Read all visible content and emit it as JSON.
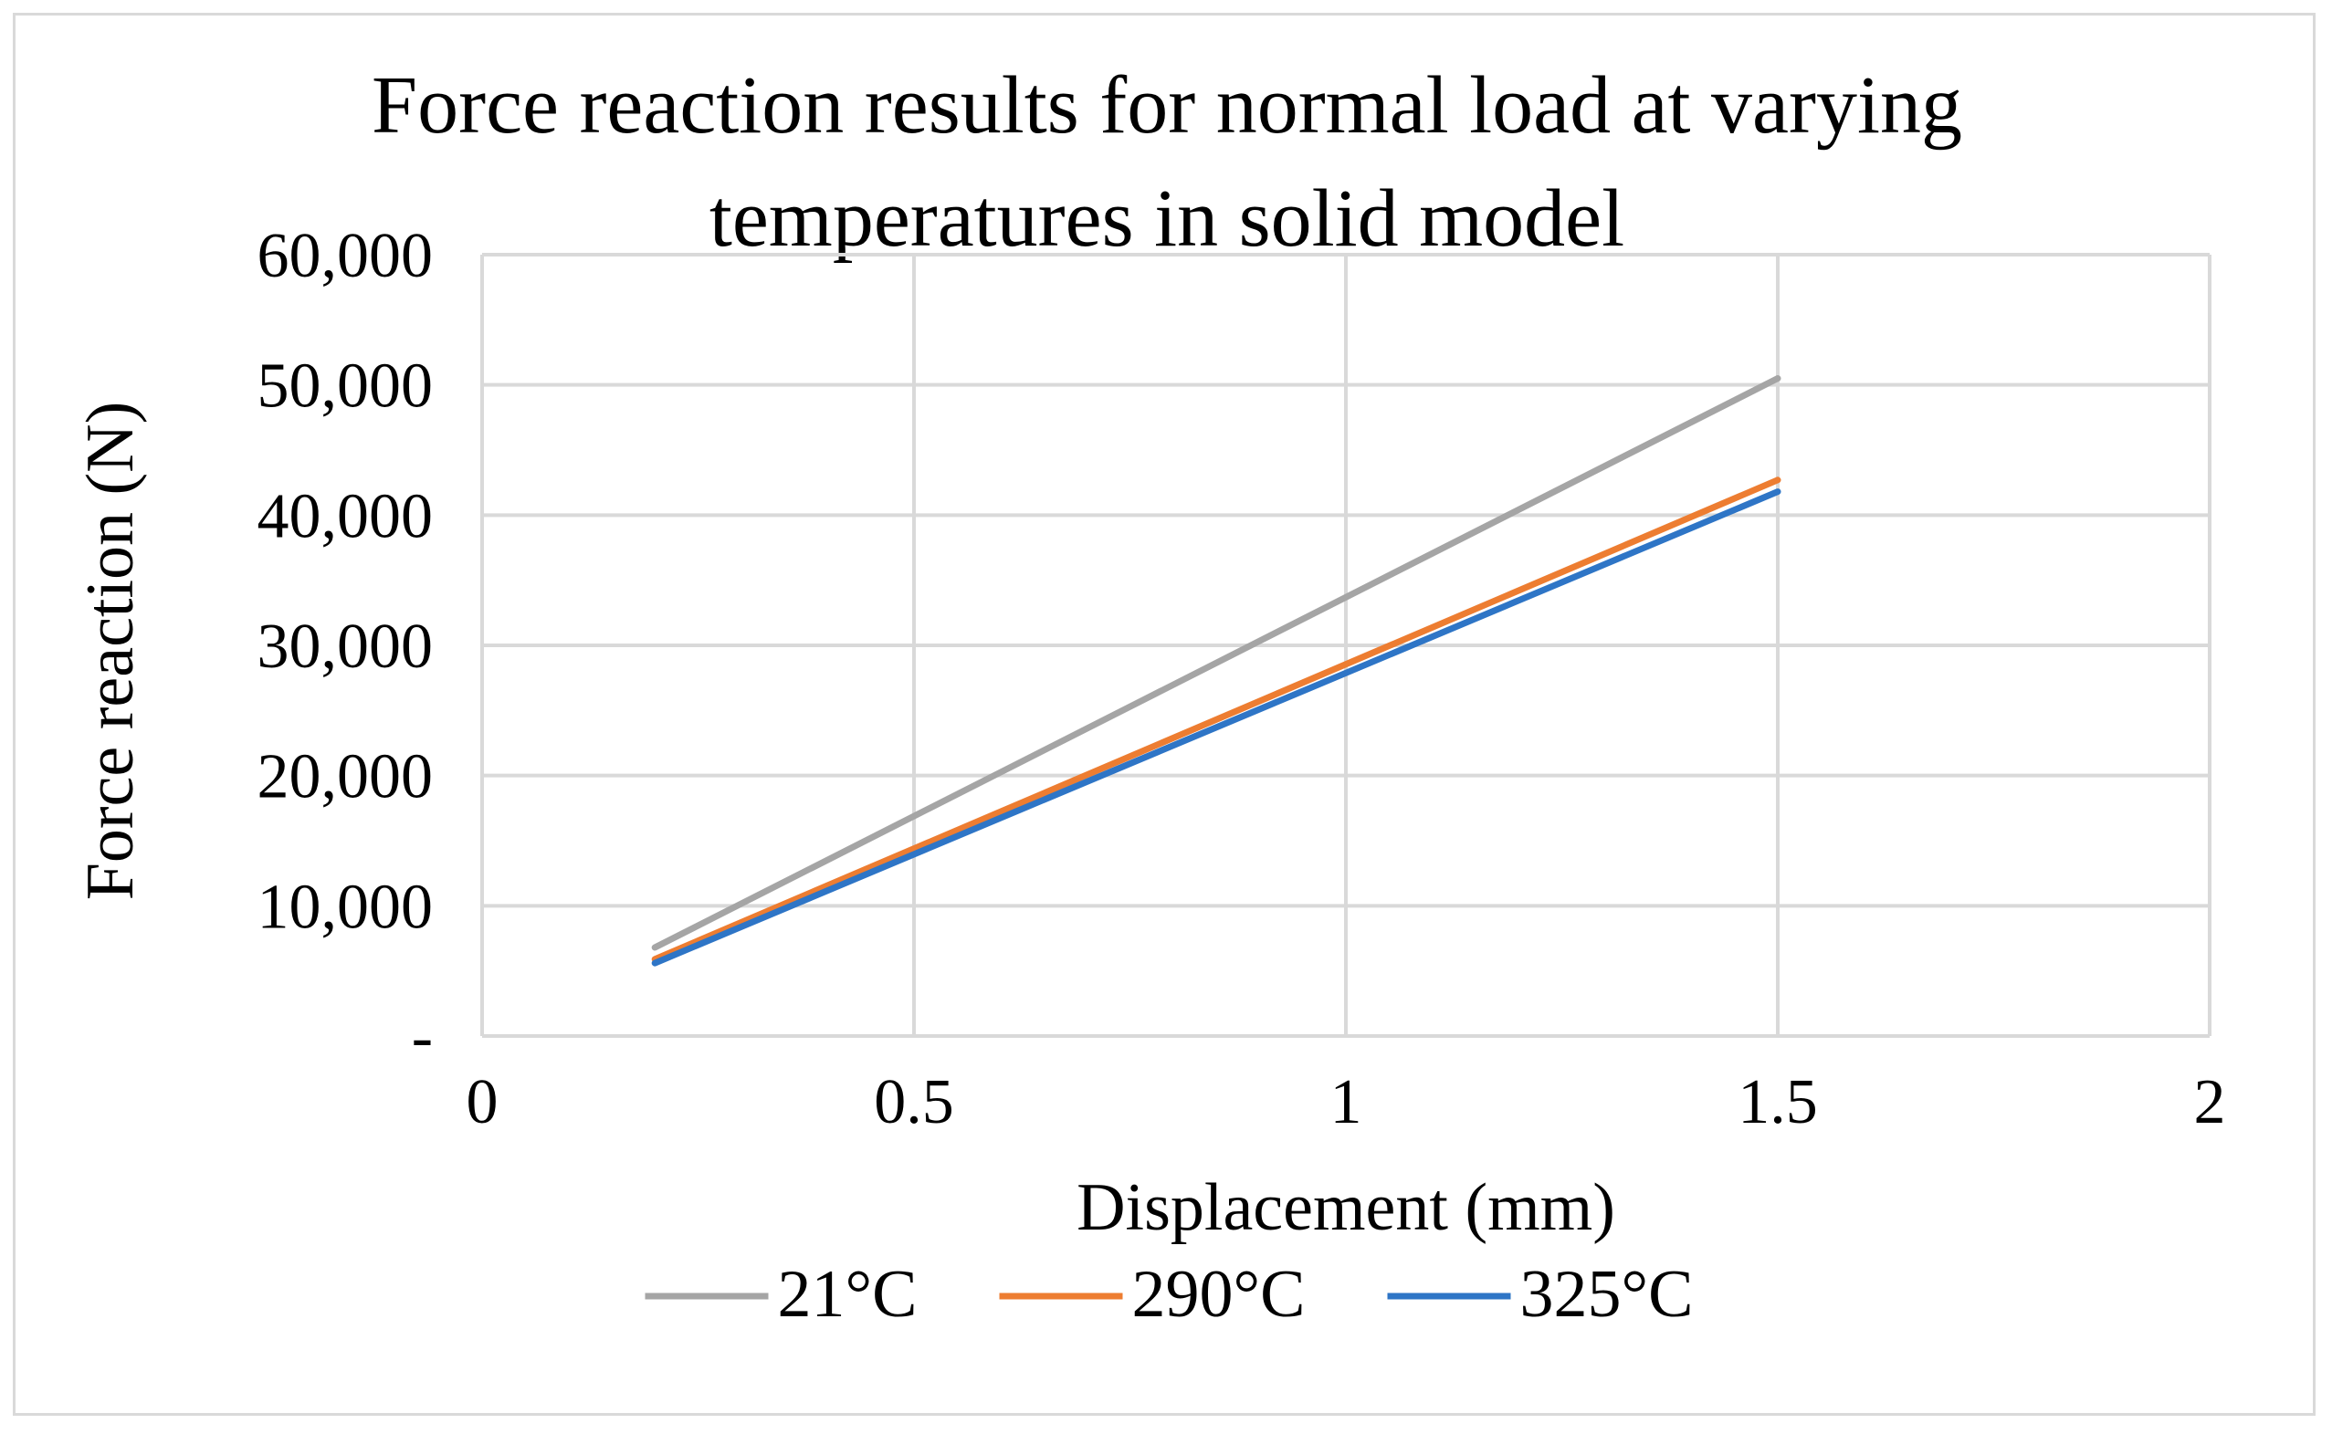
{
  "chart_data": {
    "type": "line",
    "title": "Force reaction results for normal load at varying temperatures in solid model",
    "title_lines": [
      "Force reaction results for normal load at varying",
      "temperatures in solid model"
    ],
    "xlabel": "Displacement (mm)",
    "ylabel": "Force reaction (N)",
    "xlim": [
      0,
      2
    ],
    "ylim": [
      0,
      60000
    ],
    "x_ticks": [
      0,
      0.5,
      1,
      1.5,
      2
    ],
    "x_tick_labels": [
      "0",
      "0.5",
      "1",
      "1.5",
      "2"
    ],
    "y_ticks": [
      0,
      10000,
      20000,
      30000,
      40000,
      50000,
      60000
    ],
    "y_tick_labels": [
      "-",
      "10,000",
      "20,000",
      "30,000",
      "40,000",
      "50,000",
      "60,000"
    ],
    "grid": true,
    "legend_position": "bottom",
    "series": [
      {
        "name": "21°C",
        "color": "#a5a5a5",
        "x": [
          0.2,
          1.5
        ],
        "y": [
          6800,
          50500
        ]
      },
      {
        "name": "290°C",
        "color": "#ed7d31",
        "x": [
          0.2,
          1.5
        ],
        "y": [
          5900,
          42700
        ]
      },
      {
        "name": "325°C",
        "color": "#2e75c6",
        "x": [
          0.2,
          1.5
        ],
        "y": [
          5600,
          41800
        ]
      }
    ]
  }
}
